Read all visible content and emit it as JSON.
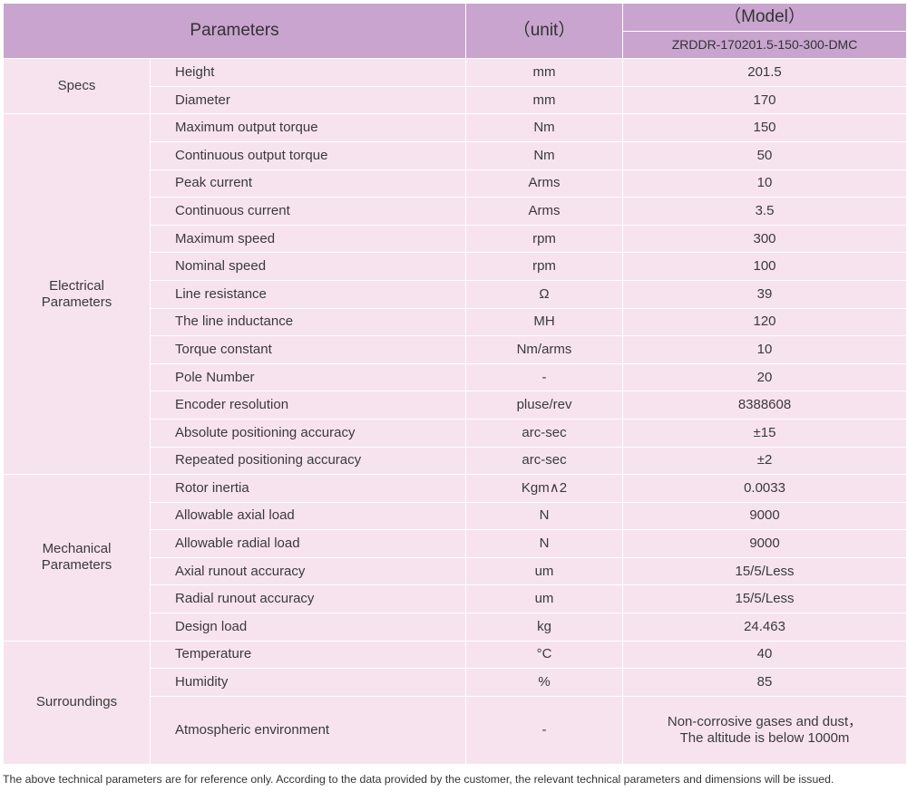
{
  "table": {
    "header": {
      "parameters": "Parameters",
      "unit": "（unit）",
      "model_label": "（Model）",
      "model": "ZRDDR-170201.5-150-300-DMC"
    },
    "groups": [
      {
        "name": "Specs",
        "rows": [
          [
            "Height",
            "mm",
            "201.5"
          ],
          [
            "Diameter",
            "mm",
            "170"
          ]
        ]
      },
      {
        "name": "Electrical Parameters",
        "rows": [
          [
            "Maximum output torque",
            "Nm",
            "150"
          ],
          [
            "Continuous output torque",
            "Nm",
            "50"
          ],
          [
            "Peak current",
            "Arms",
            "10"
          ],
          [
            "Continuous current",
            "Arms",
            "3.5"
          ],
          [
            "Maximum speed",
            "rpm",
            "300"
          ],
          [
            "Nominal speed",
            "rpm",
            "100"
          ],
          [
            "Line resistance",
            "Ω",
            "39"
          ],
          [
            "The line inductance",
            "MH",
            "120"
          ],
          [
            "Torque constant",
            "Nm/arms",
            "10"
          ],
          [
            "Pole Number",
            "-",
            "20"
          ],
          [
            "Encoder resolution",
            "pluse/rev",
            "8388608"
          ],
          [
            "Absolute positioning accuracy",
            "arc-sec",
            "±15"
          ],
          [
            "Repeated positioning accuracy",
            "arc-sec",
            "±2"
          ]
        ]
      },
      {
        "name": "Mechanical Parameters",
        "rows": [
          [
            "Rotor inertia",
            "Kgm∧2",
            "0.0033"
          ],
          [
            "Allowable axial load",
            "N",
            "9000"
          ],
          [
            "Allowable radial load",
            "N",
            "9000"
          ],
          [
            "Axial runout accuracy",
            "um",
            "15/5/Less"
          ],
          [
            "Radial runout accuracy",
            "um",
            "15/5/Less"
          ],
          [
            "Design load",
            "kg",
            "24.463"
          ]
        ]
      },
      {
        "name": "Surroundings",
        "rows": [
          [
            "Temperature",
            "°C",
            "40"
          ],
          [
            "Humidity",
            "%",
            "85"
          ],
          [
            "Atmospheric environment",
            "-",
            [
              "Non-corrosive gases and dust，",
              "The altitude is below 1000m"
            ]
          ]
        ]
      }
    ]
  },
  "footnote": "The above technical parameters are for reference only. According to the data provided by the customer, the relevant technical parameters and dimensions will be issued."
}
